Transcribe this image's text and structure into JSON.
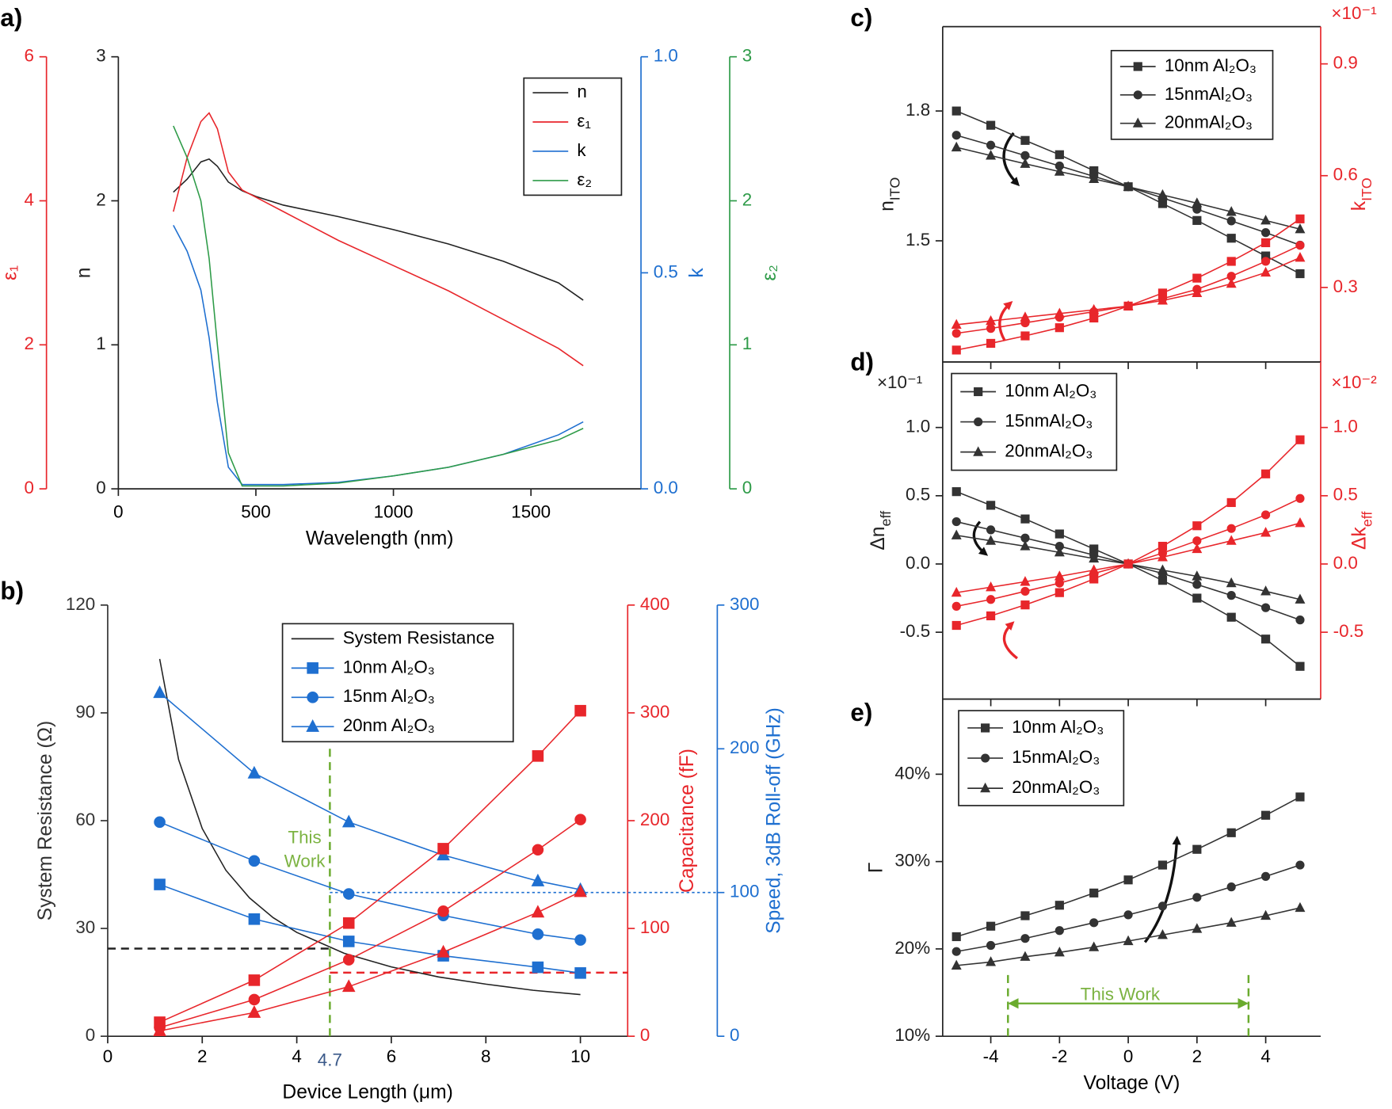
{
  "chart_data": [
    {
      "type": "line",
      "panel": "a)",
      "xlabel": "Wavelength (nm)",
      "xlim": [
        0,
        1900
      ],
      "xticks": [
        0,
        500,
        1000,
        1500
      ],
      "ylabel": "n",
      "ylim": [
        0,
        3
      ],
      "yticks": [
        0,
        1,
        2,
        3
      ],
      "ycolor": "#222222",
      "y2label": "ε₁",
      "y2lim": [
        0,
        6
      ],
      "y2ticks": [
        0,
        2,
        4,
        6
      ],
      "y2color": "#e8262b",
      "y3label": "k",
      "y3lim": [
        0,
        1
      ],
      "y3ticks": [
        {
          "value": 0,
          "label": "0.0"
        },
        0.5,
        {
          "value": 1,
          "label": "1.0"
        }
      ],
      "y3color": "#1e6fd0",
      "y4label": "ε₂",
      "y4lim": [
        0,
        3
      ],
      "y4ticks": [
        0,
        1,
        2,
        3
      ],
      "y4color": "#2e9b48",
      "legend": "upper right",
      "x": [
        200,
        250,
        300,
        330,
        360,
        400,
        450,
        500,
        600,
        800,
        1000,
        1200,
        1400,
        1600,
        1690
      ],
      "series": [
        {
          "name": "n",
          "color": "#222222",
          "axis": "y",
          "values": [
            2.06,
            2.15,
            2.27,
            2.29,
            2.24,
            2.13,
            2.07,
            2.03,
            1.97,
            1.89,
            1.8,
            1.7,
            1.58,
            1.43,
            1.31
          ]
        },
        {
          "name": "ε₁",
          "color": "#e8262b",
          "axis": "y2",
          "values": [
            3.85,
            4.6,
            5.1,
            5.22,
            5.0,
            4.4,
            4.15,
            4.05,
            3.85,
            3.45,
            3.1,
            2.75,
            2.35,
            1.95,
            1.71
          ]
        },
        {
          "name": "k",
          "color": "#1e6fd0",
          "axis": "y3",
          "values": [
            0.61,
            0.55,
            0.46,
            0.35,
            0.2,
            0.05,
            0.01,
            0.01,
            0.01,
            0.015,
            0.03,
            0.05,
            0.08,
            0.125,
            0.155
          ]
        },
        {
          "name": "ε₂",
          "color": "#2e9b48",
          "axis": "y4",
          "values": [
            2.52,
            2.3,
            2.0,
            1.6,
            1.0,
            0.25,
            0.02,
            0.02,
            0.02,
            0.04,
            0.09,
            0.15,
            0.24,
            0.34,
            0.42
          ]
        }
      ]
    },
    {
      "type": "line",
      "panel": "b)",
      "xlabel": "Device Length (μm)",
      "xlim": [
        0,
        11
      ],
      "xticks": [
        0,
        2,
        4,
        6,
        8,
        10
      ],
      "ylabel": "System Resistance (Ω)",
      "ylim": [
        0,
        120
      ],
      "yticks": [
        0,
        30,
        60,
        90,
        120
      ],
      "ycolor": "#333333",
      "y2label": "Capacitance (fF)",
      "y2lim": [
        0,
        400
      ],
      "y2ticks": [
        0,
        100,
        200,
        300,
        400
      ],
      "y2color": "#e8262b",
      "y3label": "Speed, 3dB Roll-off (GHz)",
      "y3lim": [
        0,
        300
      ],
      "y3ticks": [
        0,
        100,
        200,
        300
      ],
      "y3color": "#1e6fd0",
      "legend": "upper center",
      "x": [
        1.1,
        3.1,
        5.1,
        7.1,
        9.1,
        10
      ],
      "series": [
        {
          "name": "System Resistance",
          "color": "#222222",
          "axis": "y",
          "x": [
            1.1,
            1.5,
            2,
            2.5,
            3,
            3.5,
            4,
            5,
            6,
            7,
            8,
            9,
            10
          ],
          "values": [
            105,
            77,
            57.8,
            46.2,
            38.5,
            33,
            28.9,
            23.1,
            19.3,
            16.5,
            14.5,
            12.8,
            11.6
          ]
        },
        {
          "name": "10nm Al₂O₃",
          "color": "#1e6fd0",
          "axis": "y3",
          "marker": "square",
          "values": [
            105.6,
            81.5,
            66,
            56,
            48,
            44
          ]
        },
        {
          "name": "15nm Al₂O₃",
          "color": "#1e6fd0",
          "axis": "y3",
          "marker": "circle",
          "values": [
            149,
            122,
            99,
            84,
            71,
            67
          ]
        },
        {
          "name": "20nm Al₂O₃",
          "color": "#1e6fd0",
          "axis": "y3",
          "marker": "triangle",
          "values": [
            239,
            183,
            149,
            126,
            108,
            102
          ]
        },
        {
          "color": "#e8262b",
          "axis": "y2",
          "marker": "square",
          "values": [
            13,
            52,
            105,
            174,
            260,
            302
          ]
        },
        {
          "color": "#e8262b",
          "axis": "y2",
          "marker": "circle",
          "values": [
            8,
            34,
            71,
            116,
            173,
            201
          ]
        },
        {
          "color": "#e8262b",
          "axis": "y2",
          "marker": "triangle",
          "values": [
            5,
            22,
            46,
            78,
            115,
            134
          ]
        }
      ],
      "reference_lines": [
        {
          "orientation": "horizontal",
          "axis": "y",
          "value": 24.4,
          "from": 0,
          "to": 4.7,
          "color": "#222222",
          "style": "dashed"
        },
        {
          "orientation": "horizontal",
          "axis": "y2",
          "value": 59,
          "from": 4.7,
          "to": 11,
          "color": "#e8262b",
          "style": "dashed"
        },
        {
          "orientation": "horizontal",
          "axis": "y3",
          "value": 100,
          "from": 4.7,
          "to": 12.9,
          "color": "#1e6fd0",
          "style": "dotted"
        },
        {
          "orientation": "vertical",
          "axis": "y",
          "value": 4.7,
          "from": 0,
          "to": 81.5,
          "color": "#6aab2e",
          "style": "dashed",
          "label": "4.7"
        }
      ],
      "annotations": [
        {
          "lines": [
            "This",
            "Work"
          ],
          "color": "#7cb342"
        }
      ]
    },
    {
      "type": "line",
      "panel": "c)",
      "xlim": [
        -5.4,
        5.6
      ],
      "ylabel": [
        "n",
        "ITO"
      ],
      "ylim": [
        1.22,
        1.995
      ],
      "yticks": [
        1.5,
        1.8
      ],
      "ycolor": "#222222",
      "y2label": [
        "k",
        "ITO"
      ],
      "y2lim": [
        0.1,
        1.0
      ],
      "y2ticks": [
        0.3,
        0.6,
        0.9
      ],
      "y2color": "#e8262b",
      "y2multiplier": "×10⁻¹",
      "legend": "upper right",
      "x": [
        -5,
        -4,
        -3,
        -2,
        -1,
        0,
        1,
        2,
        3,
        4,
        5
      ],
      "series": [
        {
          "name": "10nm Al₂O₃",
          "color": "#333333",
          "axis": "y",
          "marker": "square",
          "values": [
            1.8,
            1.767,
            1.732,
            1.699,
            1.662,
            1.625,
            1.586,
            1.547,
            1.506,
            1.465,
            1.424
          ]
        },
        {
          "name": "15nmAl₂O₃",
          "color": "#333333",
          "axis": "y",
          "marker": "circle",
          "values": [
            1.744,
            1.721,
            1.697,
            1.673,
            1.649,
            1.625,
            1.599,
            1.573,
            1.546,
            1.519,
            1.49
          ]
        },
        {
          "name": "20nmAl₂O₃",
          "color": "#333333",
          "axis": "y",
          "marker": "triangle",
          "values": [
            1.716,
            1.697,
            1.678,
            1.66,
            1.643,
            1.625,
            1.606,
            1.587,
            1.567,
            1.547,
            1.527
          ]
        },
        {
          "color": "#e8262b",
          "axis": "y2",
          "marker": "square",
          "values": [
            0.132,
            0.15,
            0.17,
            0.192,
            0.218,
            0.25,
            0.285,
            0.325,
            0.37,
            0.42,
            0.484
          ]
        },
        {
          "color": "#e8262b",
          "axis": "y2",
          "marker": "circle",
          "values": [
            0.177,
            0.19,
            0.205,
            0.22,
            0.235,
            0.25,
            0.27,
            0.295,
            0.33,
            0.37,
            0.413
          ]
        },
        {
          "color": "#e8262b",
          "axis": "y2",
          "marker": "triangle",
          "values": [
            0.2,
            0.21,
            0.22,
            0.23,
            0.24,
            0.25,
            0.265,
            0.285,
            0.31,
            0.34,
            0.38
          ]
        }
      ]
    },
    {
      "type": "line",
      "panel": "d)",
      "xlim": [
        -5.4,
        5.6
      ],
      "ylabel": [
        "Δn",
        "eff"
      ],
      "ylim": [
        -0.99,
        1.48
      ],
      "yticks": [
        -0.5,
        {
          "value": 0,
          "label": "0.0"
        },
        0.5,
        {
          "value": 1,
          "label": "1.0"
        }
      ],
      "ycolor": "#222222",
      "ymultiplier": "×10⁻¹",
      "y2label": [
        "Δk",
        "eff"
      ],
      "y2lim": [
        -0.99,
        1.48
      ],
      "y2ticks": [
        -0.5,
        {
          "value": 0,
          "label": "0.0"
        },
        0.5,
        {
          "value": 1,
          "label": "1.0"
        }
      ],
      "y2color": "#e8262b",
      "y2multiplier": "×10⁻²",
      "legend": "upper left",
      "x": [
        -5,
        -4,
        -3,
        -2,
        -1,
        0,
        1,
        2,
        3,
        4,
        5
      ],
      "series": [
        {
          "name": "10nm Al₂O₃",
          "color": "#333333",
          "axis": "y",
          "marker": "square",
          "values": [
            0.53,
            0.43,
            0.33,
            0.22,
            0.11,
            0,
            -0.12,
            -0.25,
            -0.39,
            -0.55,
            -0.75
          ]
        },
        {
          "name": "15nmAl₂O₃",
          "color": "#333333",
          "axis": "y",
          "marker": "circle",
          "values": [
            0.31,
            0.25,
            0.19,
            0.13,
            0.065,
            0,
            -0.07,
            -0.15,
            -0.23,
            -0.32,
            -0.41
          ]
        },
        {
          "name": "20nmAl₂O₃",
          "color": "#333333",
          "axis": "y",
          "marker": "triangle",
          "values": [
            0.21,
            0.17,
            0.13,
            0.085,
            0.04,
            0,
            -0.045,
            -0.09,
            -0.14,
            -0.2,
            -0.26
          ]
        },
        {
          "color": "#e8262b",
          "axis": "y2",
          "marker": "square",
          "values": [
            -0.45,
            -0.38,
            -0.3,
            -0.21,
            -0.11,
            0,
            0.13,
            0.28,
            0.45,
            0.66,
            0.91
          ]
        },
        {
          "color": "#e8262b",
          "axis": "y2",
          "marker": "circle",
          "values": [
            -0.31,
            -0.26,
            -0.2,
            -0.14,
            -0.07,
            0,
            0.08,
            0.17,
            0.26,
            0.36,
            0.48
          ]
        },
        {
          "color": "#e8262b",
          "axis": "y2",
          "marker": "triangle",
          "values": [
            -0.21,
            -0.17,
            -0.13,
            -0.09,
            -0.045,
            0,
            0.05,
            0.11,
            0.17,
            0.23,
            0.3
          ]
        }
      ]
    },
    {
      "type": "line",
      "panel": "e)",
      "xlabel": "Voltage (V)",
      "xlim": [
        -5.4,
        5.6
      ],
      "xticks": [
        -4,
        -2,
        0,
        2,
        4
      ],
      "ylabel": "Γ",
      "ylim": [
        10,
        48.6
      ],
      "yticks": [
        {
          "value": 10,
          "label": "10%"
        },
        {
          "value": 20,
          "label": "20%"
        },
        {
          "value": 30,
          "label": "30%"
        },
        {
          "value": 40,
          "label": "40%"
        }
      ],
      "ycolor": "#222222",
      "legend": "upper left",
      "x": [
        -5,
        -4,
        -3,
        -2,
        -1,
        0,
        1,
        2,
        3,
        4,
        5
      ],
      "series": [
        {
          "name": "10nm Al₂O₃",
          "color": "#333333",
          "axis": "y",
          "marker": "square",
          "values": [
            21.4,
            22.6,
            23.8,
            25.0,
            26.4,
            27.9,
            29.6,
            31.4,
            33.3,
            35.3,
            37.4
          ]
        },
        {
          "name": "15nmAl₂O₃",
          "color": "#333333",
          "axis": "y",
          "marker": "circle",
          "values": [
            19.7,
            20.4,
            21.2,
            22.1,
            23.0,
            23.9,
            24.9,
            25.9,
            27.1,
            28.3,
            29.6
          ]
        },
        {
          "name": "20nmAl₂O₃",
          "color": "#333333",
          "axis": "y",
          "marker": "triangle",
          "values": [
            18.1,
            18.5,
            19.1,
            19.6,
            20.2,
            20.9,
            21.6,
            22.3,
            23.0,
            23.8,
            24.7
          ]
        }
      ],
      "reference_lines": [
        {
          "orientation": "vertical",
          "axis": "y",
          "value": -3.5,
          "from": 10,
          "to": 17.4,
          "color": "#6aab2e",
          "style": "dashed"
        },
        {
          "orientation": "vertical",
          "axis": "y",
          "value": 3.5,
          "from": 10,
          "to": 17.4,
          "color": "#6aab2e",
          "style": "dashed"
        }
      ],
      "annotations": [
        {
          "lines": [
            "This Work"
          ],
          "color": "#7cb342"
        }
      ]
    }
  ]
}
